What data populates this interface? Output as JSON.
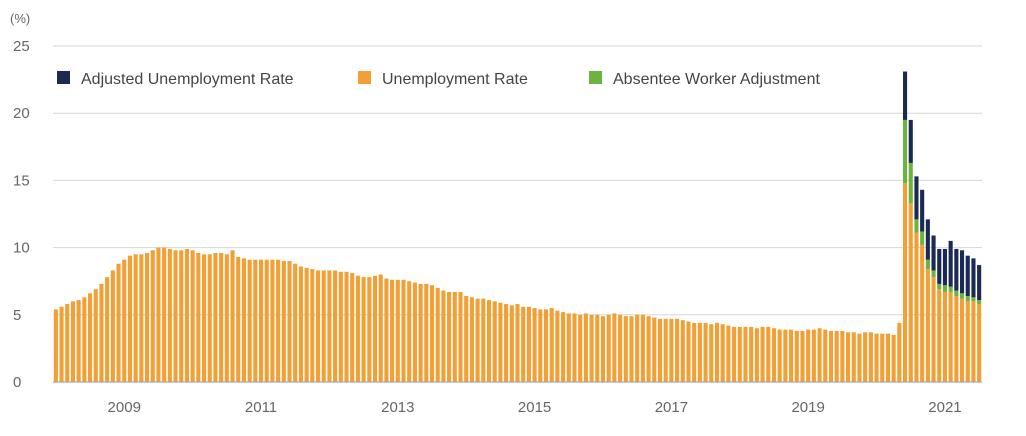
{
  "chart_data": {
    "type": "bar",
    "stacked": true,
    "unit_label": "(%)",
    "ylim": [
      0,
      25
    ],
    "y_ticks": [
      "0",
      "5",
      "10",
      "15",
      "20",
      "25"
    ],
    "x_ticks": [
      "2009",
      "2011",
      "2013",
      "2015",
      "2017",
      "2019",
      "2021"
    ],
    "grid": true,
    "legend_position": "top-left",
    "legend": [
      {
        "label": "Adjusted Unemployment Rate",
        "color": "#1b2a55"
      },
      {
        "label": "Unemployment Rate",
        "color": "#f2a035"
      },
      {
        "label": "Absentee Worker Adjustment",
        "color": "#6db33f"
      }
    ],
    "x_start": "2008-01",
    "series": [
      {
        "name": "Unemployment Rate",
        "color": "#f2a035",
        "values": [
          5.4,
          5.6,
          5.8,
          6.0,
          6.1,
          6.3,
          6.6,
          6.9,
          7.3,
          7.8,
          8.3,
          8.8,
          9.1,
          9.4,
          9.5,
          9.5,
          9.6,
          9.8,
          10.0,
          10.0,
          9.9,
          9.8,
          9.8,
          9.9,
          9.8,
          9.6,
          9.5,
          9.5,
          9.6,
          9.6,
          9.5,
          9.8,
          9.3,
          9.2,
          9.1,
          9.1,
          9.1,
          9.1,
          9.1,
          9.1,
          9.0,
          9.0,
          8.8,
          8.6,
          8.5,
          8.4,
          8.3,
          8.3,
          8.3,
          8.3,
          8.2,
          8.2,
          8.1,
          7.9,
          7.8,
          7.8,
          7.9,
          8.0,
          7.7,
          7.6,
          7.6,
          7.6,
          7.5,
          7.4,
          7.3,
          7.3,
          7.2,
          7.0,
          6.8,
          6.7,
          6.7,
          6.7,
          6.4,
          6.3,
          6.2,
          6.2,
          6.1,
          6.0,
          5.9,
          5.8,
          5.7,
          5.8,
          5.6,
          5.6,
          5.5,
          5.4,
          5.4,
          5.5,
          5.3,
          5.2,
          5.1,
          5.1,
          5.0,
          5.1,
          5.0,
          5.0,
          4.9,
          5.0,
          5.1,
          5.0,
          4.9,
          4.9,
          5.0,
          5.0,
          4.9,
          4.8,
          4.7,
          4.7,
          4.7,
          4.7,
          4.6,
          4.5,
          4.4,
          4.4,
          4.4,
          4.3,
          4.4,
          4.3,
          4.2,
          4.1,
          4.1,
          4.1,
          4.1,
          4.0,
          4.1,
          4.1,
          4.0,
          3.9,
          3.9,
          3.9,
          3.8,
          3.8,
          3.9,
          3.9,
          4.0,
          3.9,
          3.8,
          3.8,
          3.8,
          3.7,
          3.7,
          3.6,
          3.7,
          3.7,
          3.6,
          3.6,
          3.6,
          3.5,
          4.4,
          14.8,
          13.3,
          11.1,
          10.2,
          8.4,
          7.8,
          6.9,
          6.7,
          6.7,
          6.4,
          6.2,
          6.0,
          6.0,
          5.8
        ]
      },
      {
        "name": "Absentee Worker Adjustment",
        "color": "#6db33f",
        "values": [
          0,
          0,
          0,
          0,
          0,
          0,
          0,
          0,
          0,
          0,
          0,
          0,
          0,
          0,
          0,
          0,
          0,
          0,
          0,
          0,
          0,
          0,
          0,
          0,
          0,
          0,
          0,
          0,
          0,
          0,
          0,
          0,
          0,
          0,
          0,
          0,
          0,
          0,
          0,
          0,
          0,
          0,
          0,
          0,
          0,
          0,
          0,
          0,
          0,
          0,
          0,
          0,
          0,
          0,
          0,
          0,
          0,
          0,
          0,
          0,
          0,
          0,
          0,
          0,
          0,
          0,
          0,
          0,
          0,
          0,
          0,
          0,
          0,
          0,
          0,
          0,
          0,
          0,
          0,
          0,
          0,
          0,
          0,
          0,
          0,
          0,
          0,
          0,
          0,
          0,
          0,
          0,
          0,
          0,
          0,
          0,
          0,
          0,
          0,
          0,
          0,
          0,
          0,
          0,
          0,
          0,
          0,
          0,
          0,
          0,
          0,
          0,
          0,
          0,
          0,
          0,
          0,
          0,
          0,
          0,
          0,
          0,
          0,
          0,
          0,
          0,
          0,
          0,
          0,
          0,
          0,
          0,
          0,
          0,
          0,
          0,
          0,
          0,
          0,
          0,
          0,
          0,
          0,
          0,
          0,
          0,
          0,
          0,
          0,
          4.7,
          3.0,
          1.0,
          1.0,
          0.7,
          0.5,
          0.4,
          0.5,
          0.4,
          0.4,
          0.4,
          0.4,
          0.3,
          0.3
        ]
      },
      {
        "name": "Adjusted Unemployment Rate",
        "color": "#1b2a55",
        "values": [
          0,
          0,
          0,
          0,
          0,
          0,
          0,
          0,
          0,
          0,
          0,
          0,
          0,
          0,
          0,
          0,
          0,
          0,
          0,
          0,
          0,
          0,
          0,
          0,
          0,
          0,
          0,
          0,
          0,
          0,
          0,
          0,
          0,
          0,
          0,
          0,
          0,
          0,
          0,
          0,
          0,
          0,
          0,
          0,
          0,
          0,
          0,
          0,
          0,
          0,
          0,
          0,
          0,
          0,
          0,
          0,
          0,
          0,
          0,
          0,
          0,
          0,
          0,
          0,
          0,
          0,
          0,
          0,
          0,
          0,
          0,
          0,
          0,
          0,
          0,
          0,
          0,
          0,
          0,
          0,
          0,
          0,
          0,
          0,
          0,
          0,
          0,
          0,
          0,
          0,
          0,
          0,
          0,
          0,
          0,
          0,
          0,
          0,
          0,
          0,
          0,
          0,
          0,
          0,
          0,
          0,
          0,
          0,
          0,
          0,
          0,
          0,
          0,
          0,
          0,
          0,
          0,
          0,
          0,
          0,
          0,
          0,
          0,
          0,
          0,
          0,
          0,
          0,
          0,
          0,
          0,
          0,
          0,
          0,
          0,
          0,
          0,
          0,
          0,
          0,
          0,
          0,
          0,
          0,
          0,
          0,
          0,
          0,
          0,
          3.6,
          3.2,
          3.2,
          3.1,
          3.0,
          2.6,
          2.6,
          2.7,
          3.4,
          3.1,
          3.2,
          3.0,
          2.9,
          2.6
        ]
      }
    ]
  }
}
